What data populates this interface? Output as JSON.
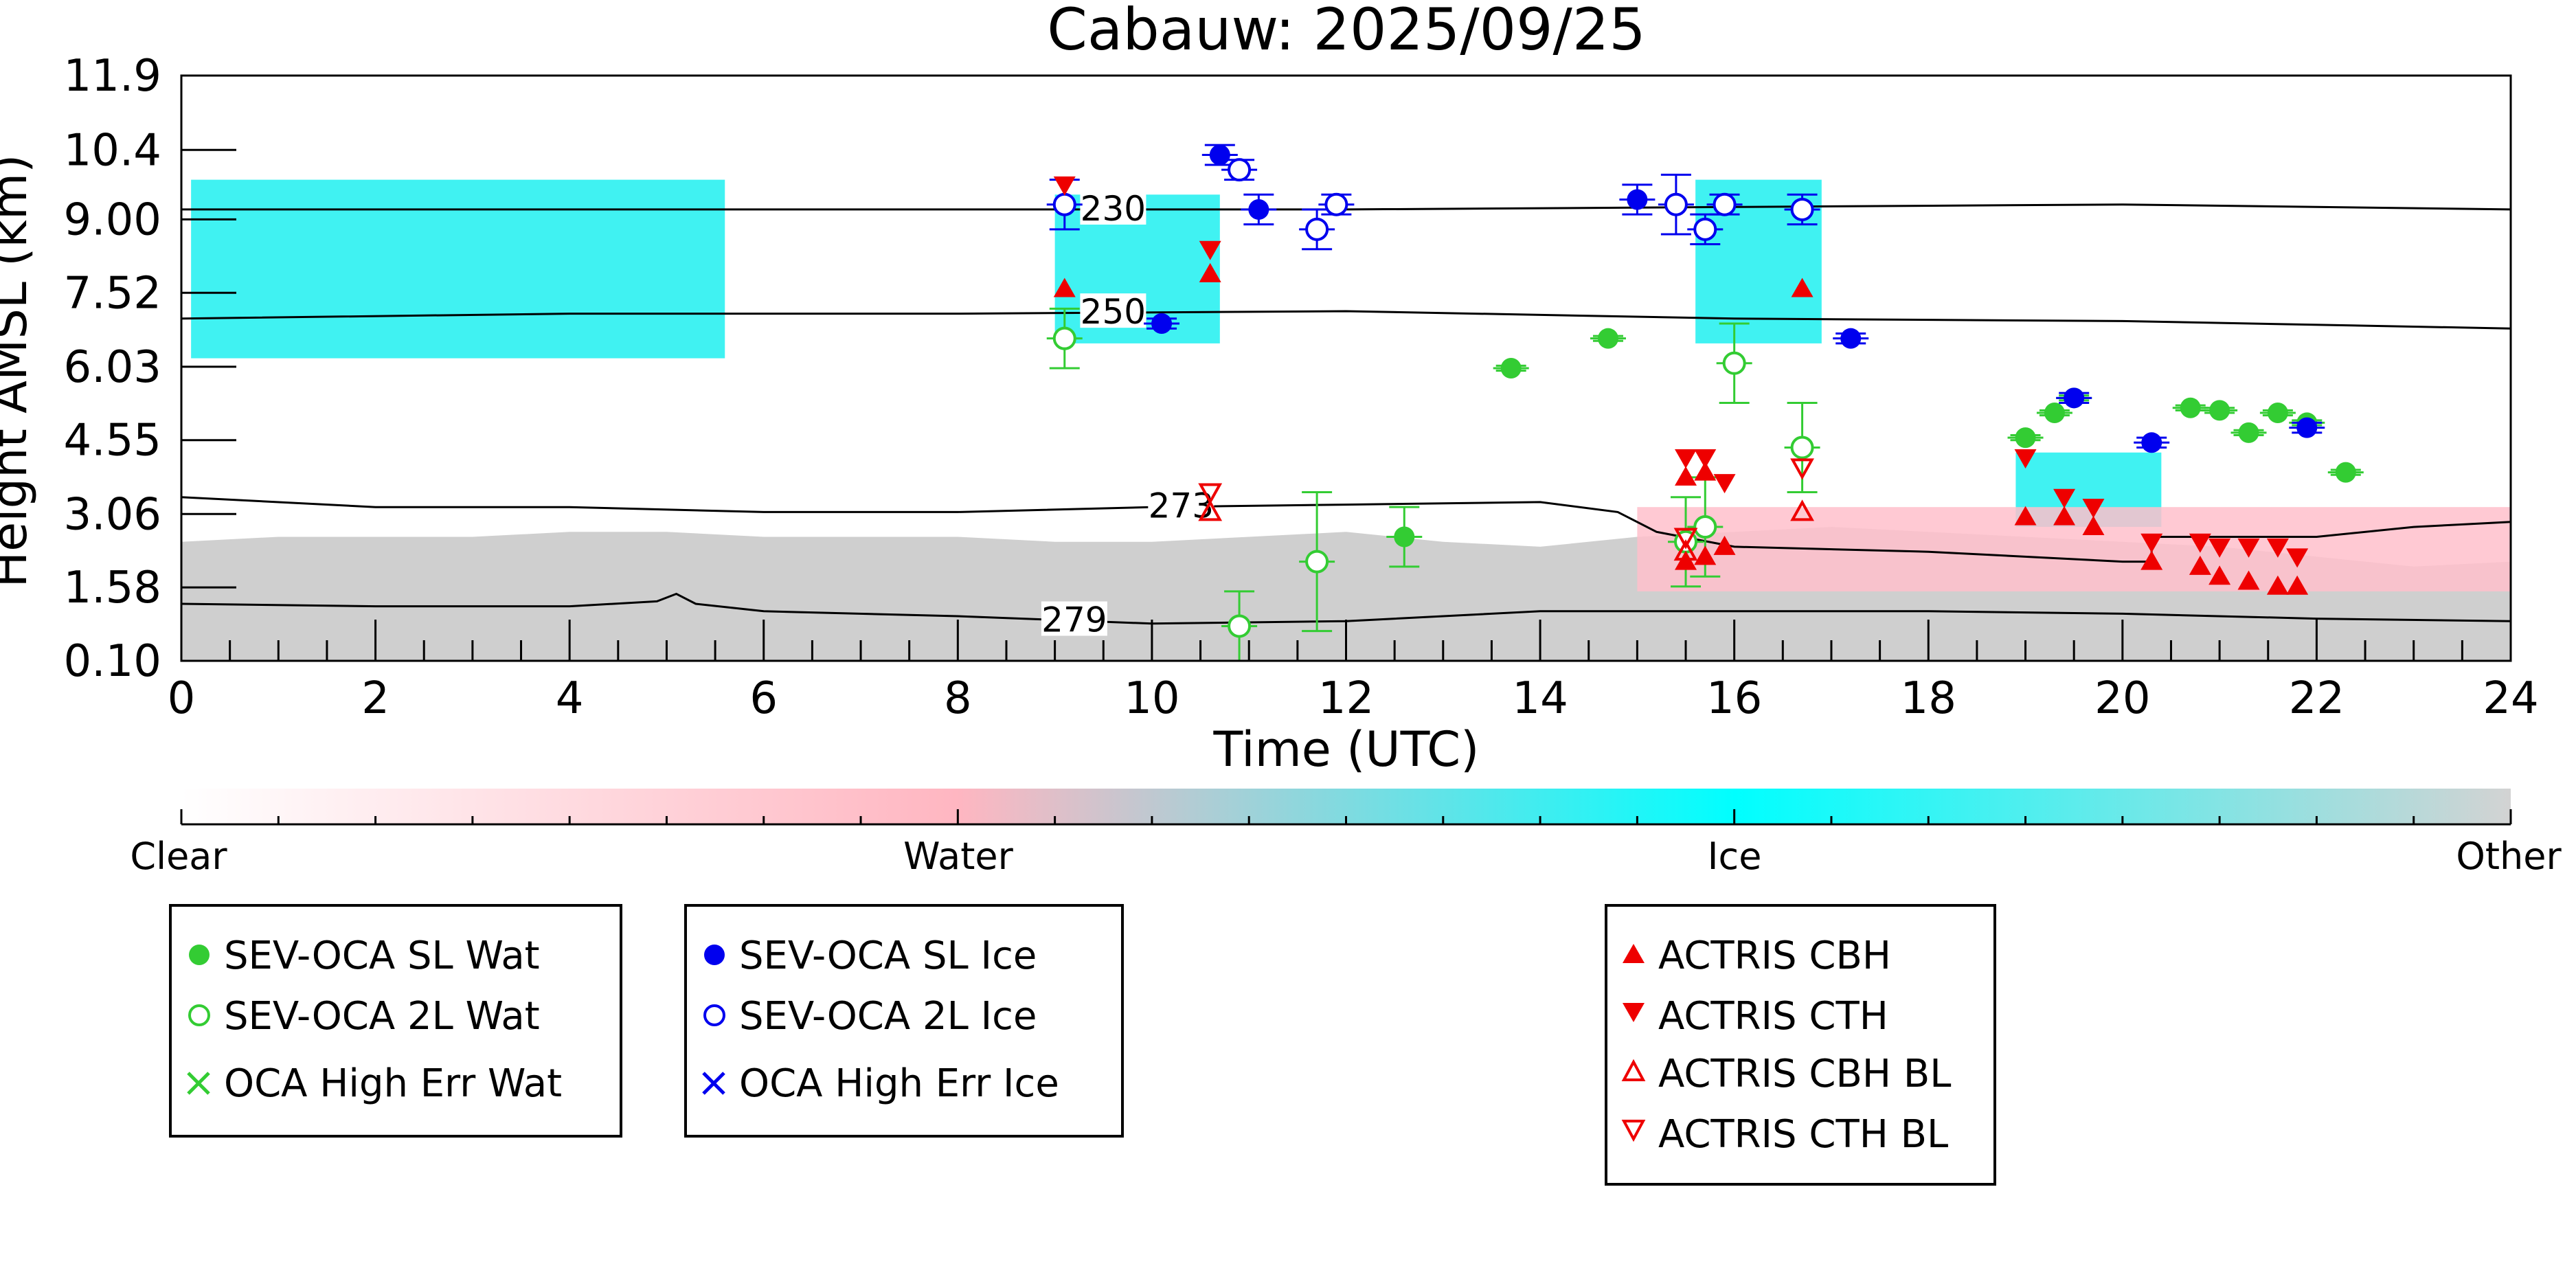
{
  "chart_data": {
    "type": "scatter",
    "title": "Cabauw: 2025/09/25",
    "xlabel": "Time (UTC)",
    "ylabel": "Height AMSL (km)",
    "xlim": [
      0,
      24
    ],
    "ylim": [
      0.1,
      11.9
    ],
    "x_ticks": [
      "0",
      "2",
      "4",
      "6",
      "8",
      "10",
      "12",
      "14",
      "16",
      "18",
      "20",
      "22",
      "24"
    ],
    "y_ticks": [
      {
        "value": 0.1,
        "label": "0.10"
      },
      {
        "value": 1.58,
        "label": "1.58"
      },
      {
        "value": 3.06,
        "label": "3.06"
      },
      {
        "value": 4.55,
        "label": "4.55"
      },
      {
        "value": 6.03,
        "label": "6.03"
      },
      {
        "value": 7.52,
        "label": "7.52"
      },
      {
        "value": 9.0,
        "label": "9.00"
      },
      {
        "value": 10.4,
        "label": "10.4"
      },
      {
        "value": 11.9,
        "label": "11.9"
      }
    ],
    "colorbar": {
      "labels": [
        "Clear",
        "Water",
        "Ice",
        "Other"
      ],
      "colors": [
        "#ffffff",
        "#ffb6c1",
        "#00ffff",
        "#d3d3d3"
      ]
    },
    "background_regions": [
      {
        "category": "Other",
        "color": "#cfcfcf",
        "x": [
          0,
          24
        ],
        "y_top": [
          2.5,
          2.6,
          2.6,
          2.6,
          2.7,
          2.7,
          2.6,
          2.6,
          2.6,
          2.5,
          2.5,
          2.6,
          2.7,
          2.5,
          2.4,
          2.6,
          2.7,
          2.8,
          2.7,
          2.6,
          2.5,
          2.4,
          2.2,
          2.0,
          2.1
        ]
      },
      {
        "category": "Ice",
        "color": "#1ef0f0",
        "x_range": [
          0.1,
          5.6
        ],
        "y_range": [
          6.2,
          9.8
        ]
      },
      {
        "category": "Ice",
        "color": "#1ef0f0",
        "x_range": [
          9.0,
          10.7
        ],
        "y_range": [
          6.5,
          9.5
        ]
      },
      {
        "category": "Ice",
        "color": "#1ef0f0",
        "x_range": [
          15.6,
          16.9
        ],
        "y_range": [
          6.5,
          9.8
        ]
      },
      {
        "category": "Ice",
        "color": "#1ef0f0",
        "x_range": [
          18.9,
          20.4
        ],
        "y_range": [
          2.8,
          4.3
        ]
      },
      {
        "category": "Water",
        "color": "#ffc0cb",
        "x_range": [
          15.0,
          24.0
        ],
        "y_range": [
          1.5,
          3.2
        ]
      }
    ],
    "contours": [
      {
        "label": "230",
        "label_x": 9.6,
        "x": [
          0,
          4,
          8,
          12,
          16,
          20,
          24
        ],
        "y": [
          9.2,
          9.2,
          9.2,
          9.2,
          9.25,
          9.3,
          9.2
        ]
      },
      {
        "label": "250",
        "label_x": 9.6,
        "x": [
          0,
          4,
          8,
          12,
          16,
          20,
          24
        ],
        "y": [
          7.0,
          7.1,
          7.1,
          7.15,
          7.0,
          6.95,
          6.8
        ]
      },
      {
        "label": "273",
        "label_x": 10.3,
        "x": [
          0,
          2,
          4,
          6,
          8,
          10,
          12,
          14,
          14.8,
          15.2,
          16,
          18,
          20,
          20.3,
          20.3,
          22,
          23,
          24
        ],
        "y": [
          3.4,
          3.2,
          3.2,
          3.1,
          3.1,
          3.2,
          3.25,
          3.3,
          3.1,
          2.7,
          2.4,
          2.3,
          2.1,
          2.1,
          2.6,
          2.6,
          2.8,
          2.9
        ]
      },
      {
        "label": "279",
        "label_x": 9.2,
        "x": [
          0,
          2,
          4,
          4.9,
          5.1,
          5.3,
          6,
          8,
          10,
          12,
          14,
          16,
          18,
          20,
          22,
          24
        ],
        "y": [
          1.25,
          1.2,
          1.2,
          1.3,
          1.45,
          1.25,
          1.1,
          1.0,
          0.85,
          0.9,
          1.1,
          1.1,
          1.1,
          1.05,
          0.95,
          0.9
        ]
      }
    ],
    "series": [
      {
        "name": "SEV-OCA SL Wat",
        "color": "#33cc33",
        "marker": "filled-circle",
        "points": [
          [
            12.6,
            2.6,
            0.6
          ],
          [
            13.7,
            6.0,
            0.05
          ],
          [
            14.7,
            6.6,
            0.05
          ],
          [
            19.0,
            4.6,
            0.05
          ],
          [
            19.3,
            5.1,
            0.05
          ],
          [
            19.5,
            5.4,
            0.05
          ],
          [
            20.7,
            5.2,
            0.05
          ],
          [
            21.0,
            5.15,
            0.05
          ],
          [
            21.3,
            4.7,
            0.05
          ],
          [
            21.6,
            5.1,
            0.05
          ],
          [
            21.9,
            4.9,
            0.05
          ],
          [
            22.3,
            3.9,
            0.05
          ]
        ]
      },
      {
        "name": "SEV-OCA 2L Wat",
        "color": "#33cc33",
        "marker": "open-circle",
        "points": [
          [
            9.1,
            6.6,
            0.6
          ],
          [
            10.9,
            0.8,
            0.7
          ],
          [
            11.7,
            2.1,
            1.4
          ],
          [
            15.5,
            2.5,
            0.9
          ],
          [
            15.7,
            2.8,
            1.0
          ],
          [
            16.0,
            6.1,
            0.8
          ],
          [
            16.7,
            4.4,
            0.9
          ]
        ]
      },
      {
        "name": "OCA High Err Wat",
        "color": "#33cc33",
        "marker": "x",
        "points": []
      },
      {
        "name": "SEV-OCA SL Ice",
        "color": "#0000ee",
        "marker": "filled-circle",
        "points": [
          [
            10.1,
            6.9,
            0.1
          ],
          [
            10.7,
            10.3,
            0.2
          ],
          [
            11.1,
            9.2,
            0.3
          ],
          [
            15.0,
            9.4,
            0.3
          ],
          [
            17.2,
            6.6,
            0.1
          ],
          [
            19.5,
            5.4,
            0.1
          ],
          [
            20.3,
            4.5,
            0.1
          ],
          [
            21.9,
            4.8,
            0.1
          ]
        ]
      },
      {
        "name": "SEV-OCA 2L Ice",
        "color": "#0000ee",
        "marker": "open-circle",
        "points": [
          [
            9.1,
            9.3,
            0.5
          ],
          [
            10.9,
            10.0,
            0.2
          ],
          [
            11.7,
            8.8,
            0.4
          ],
          [
            11.9,
            9.3,
            0.2
          ],
          [
            15.4,
            9.3,
            0.6
          ],
          [
            15.7,
            8.8,
            0.3
          ],
          [
            15.9,
            9.3,
            0.2
          ],
          [
            16.7,
            9.2,
            0.3
          ]
        ]
      },
      {
        "name": "OCA High Err Ice",
        "color": "#0000ee",
        "marker": "x",
        "points": []
      },
      {
        "name": "ACTRIS CBH",
        "color": "#ee0000",
        "marker": "filled-triangle-up",
        "points": [
          [
            9.1,
            7.6
          ],
          [
            10.6,
            7.9
          ],
          [
            15.5,
            3.8
          ],
          [
            15.7,
            3.9
          ],
          [
            15.5,
            2.1
          ],
          [
            15.7,
            2.2
          ],
          [
            15.9,
            2.4
          ],
          [
            16.7,
            7.6
          ],
          [
            19.0,
            3.0
          ],
          [
            19.4,
            3.0
          ],
          [
            19.7,
            2.8
          ],
          [
            20.3,
            2.1
          ],
          [
            20.8,
            2.0
          ],
          [
            21.0,
            1.8
          ],
          [
            21.3,
            1.7
          ],
          [
            21.6,
            1.6
          ],
          [
            21.8,
            1.6
          ]
        ]
      },
      {
        "name": "ACTRIS CTH",
        "color": "#ee0000",
        "marker": "filled-triangle-down",
        "points": [
          [
            9.1,
            9.7
          ],
          [
            10.6,
            8.4
          ],
          [
            15.5,
            4.2
          ],
          [
            15.7,
            4.2
          ],
          [
            15.9,
            3.7
          ],
          [
            19.0,
            4.2
          ],
          [
            19.4,
            3.4
          ],
          [
            19.7,
            3.2
          ],
          [
            20.3,
            2.5
          ],
          [
            20.8,
            2.5
          ],
          [
            21.0,
            2.4
          ],
          [
            21.3,
            2.4
          ],
          [
            21.6,
            2.4
          ],
          [
            21.8,
            2.2
          ]
        ]
      },
      {
        "name": "ACTRIS CBH BL",
        "color": "#ee0000",
        "marker": "open-triangle-up",
        "points": [
          [
            10.6,
            3.1
          ],
          [
            15.5,
            2.3
          ],
          [
            16.7,
            3.1
          ]
        ]
      },
      {
        "name": "ACTRIS CTH BL",
        "color": "#ee0000",
        "marker": "open-triangle-down",
        "points": [
          [
            10.6,
            3.5
          ],
          [
            15.5,
            2.6
          ],
          [
            16.7,
            4.0
          ]
        ]
      }
    ]
  },
  "legend_groups": [
    [
      "SEV-OCA SL Wat",
      "SEV-OCA 2L Wat",
      "OCA High Err Wat"
    ],
    [
      "SEV-OCA SL Ice",
      "SEV-OCA 2L Ice",
      "OCA High Err Ice"
    ],
    [
      "ACTRIS CBH",
      "ACTRIS CTH",
      "ACTRIS CBH BL",
      "ACTRIS CTH BL"
    ]
  ]
}
